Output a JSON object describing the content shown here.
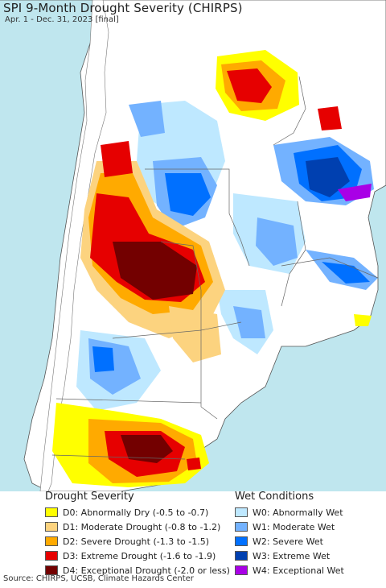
{
  "title": "SPI 9-Month Drought Severity (CHIRPS)",
  "subtitle": "Apr. 1 - Dec. 31, 2023 [final]",
  "legend": {
    "drought_title": "Drought Severity",
    "wet_title": "Wet Conditions",
    "drought": [
      {
        "label": "D0: Abnormally Dry (-0.5 to -0.7)",
        "color": "#ffff00"
      },
      {
        "label": "D1: Moderate Drought (-0.8 to -1.2)",
        "color": "#fcd37f"
      },
      {
        "label": "D2: Severe Drought (-1.3 to -1.5)",
        "color": "#ffaa00"
      },
      {
        "label": "D3: Extreme Drought (-1.6 to -1.9)",
        "color": "#e60000"
      },
      {
        "label": "D4: Exceptional Drought (-2.0 or less)",
        "color": "#730000"
      }
    ],
    "wet": [
      {
        "label": "W0: Abnormally Wet",
        "color": "#bee8ff"
      },
      {
        "label": "W1: Moderate Wet",
        "color": "#73b2ff"
      },
      {
        "label": "W2: Severe Wet",
        "color": "#0070ff"
      },
      {
        "label": "W3: Extreme Wet",
        "color": "#0040b0"
      },
      {
        "label": "W4: Exceptional Wet",
        "color": "#a900e6"
      }
    ]
  },
  "source": "Source: CHIRPS, UCSB, Climate Hazards Center",
  "colors": {
    "ocean": "#bfe6ee",
    "land_nodata": "#ffffff",
    "boundary": "#666666"
  }
}
